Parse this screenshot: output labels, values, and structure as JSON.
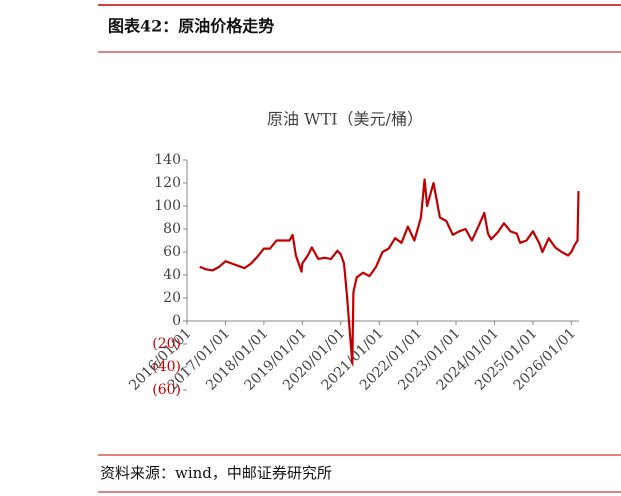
{
  "header": {
    "title": "图表42：原油价格走势"
  },
  "chart_data": {
    "type": "line",
    "title": "原油 WTI（美元/桶）",
    "x": [
      "2016/05/01",
      "2016/07/01",
      "2016/09/01",
      "2016/11/01",
      "2017/01/01",
      "2017/03/01",
      "2017/05/01",
      "2017/07/01",
      "2017/09/01",
      "2017/11/01",
      "2018/01/01",
      "2018/03/01",
      "2018/05/01",
      "2018/07/01",
      "2018/09/01",
      "2018/10/01",
      "2018/11/01",
      "2018/12/24",
      "2019/01/01",
      "2019/03/01",
      "2019/04/01",
      "2019/06/01",
      "2019/08/01",
      "2019/10/01",
      "2019/12/01",
      "2020/01/01",
      "2020/02/01",
      "2020/03/01",
      "2020/04/20",
      "2020/05/01",
      "2020/06/01",
      "2020/08/01",
      "2020/10/01",
      "2020/12/01",
      "2021/02/01",
      "2021/04/01",
      "2021/06/01",
      "2021/08/01",
      "2021/10/01",
      "2021/12/01",
      "2022/02/01",
      "2022/03/08",
      "2022/04/01",
      "2022/06/01",
      "2022/08/01",
      "2022/10/01",
      "2022/12/01",
      "2023/02/01",
      "2023/04/01",
      "2023/06/01",
      "2023/08/01",
      "2023/09/27",
      "2023/11/01",
      "2023/12/01",
      "2024/02/01",
      "2024/04/01",
      "2024/06/01",
      "2024/08/01",
      "2024/09/01",
      "2024/11/01",
      "2025/01/01",
      "2025/03/01",
      "2025/04/01",
      "2025/06/01",
      "2025/08/01",
      "2025/10/01",
      "2025/12/01",
      "2026/01/01",
      "2026/02/01",
      "2026/03/01",
      "2026/03/10"
    ],
    "series": [
      {
        "name": "原油 WTI",
        "color": "#c00000",
        "values": [
          47,
          45,
          44,
          47,
          52,
          50,
          48,
          46,
          50,
          56,
          63,
          63,
          70,
          70,
          70,
          75,
          57,
          43,
          50,
          58,
          64,
          54,
          55,
          54,
          61,
          58,
          50,
          22,
          -37,
          25,
          38,
          42,
          39,
          47,
          60,
          63,
          72,
          68,
          82,
          70,
          90,
          123,
          100,
          120,
          90,
          87,
          75,
          78,
          80,
          70,
          82,
          94,
          76,
          71,
          77,
          85,
          78,
          76,
          68,
          70,
          78,
          68,
          60,
          72,
          64,
          60,
          57,
          60,
          66,
          70,
          113
        ]
      }
    ],
    "xlim": [
      "2016/01/01",
      "2026/03/15"
    ],
    "xticks": [
      "2016/01/01",
      "2017/01/01",
      "2018/01/01",
      "2019/01/01",
      "2020/01/01",
      "2021/01/01",
      "2022/01/01",
      "2023/01/01",
      "2024/01/01",
      "2025/01/01",
      "2026/01/01"
    ],
    "ylim": [
      -60,
      140
    ],
    "yticks": [
      {
        "value": -60,
        "label": "(60)"
      },
      {
        "value": -40,
        "label": "(40)"
      },
      {
        "value": -20,
        "label": "(20)"
      },
      0,
      20,
      40,
      60,
      80,
      100,
      120,
      140
    ],
    "negative_label_color": "#c00000"
  },
  "footer": {
    "source": "资料来源：wind，中邮证券研究所"
  }
}
